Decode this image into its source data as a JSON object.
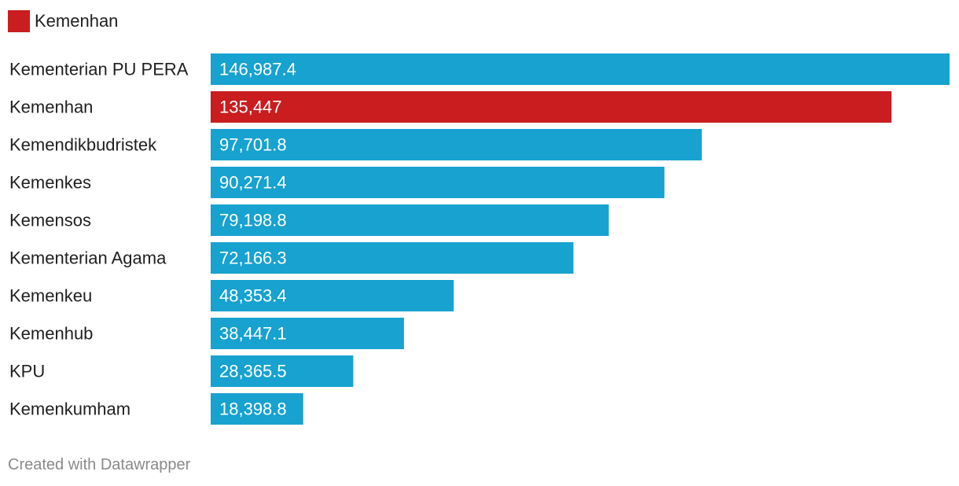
{
  "legend": {
    "label": "Kemenhan",
    "color": "#c91d1f"
  },
  "footer": {
    "credit": "Created with Datawrapper"
  },
  "colors": {
    "default_bar": "#17a2d0",
    "highlight_bar": "#c91d1f",
    "bar_label_text": "#ffffff",
    "category_text": "#1f1f1f"
  },
  "chart_data": {
    "type": "bar",
    "orientation": "horizontal",
    "highlight": "Kemenhan",
    "categories": [
      "Kementerian PU PERA",
      "Kemenhan",
      "Kemendikbudristek",
      "Kemenkes",
      "Kemensos",
      "Kementerian Agama",
      "Kemenkeu",
      "Kemenhub",
      "KPU",
      "Kemenkumham"
    ],
    "values": [
      146987.4,
      135447,
      97701.8,
      90271.4,
      79198.8,
      72166.3,
      48353.4,
      38447.1,
      28365.5,
      18398.8
    ],
    "value_labels": [
      "146,987.4",
      "135,447",
      "97,701.8",
      "90,271.4",
      "79,198.8",
      "72,166.3",
      "48,353.4",
      "38,447.1",
      "28,365.5",
      "18,398.8"
    ],
    "xlim": [
      0,
      146987.4
    ],
    "grid": false,
    "legend_position": "top-left"
  }
}
